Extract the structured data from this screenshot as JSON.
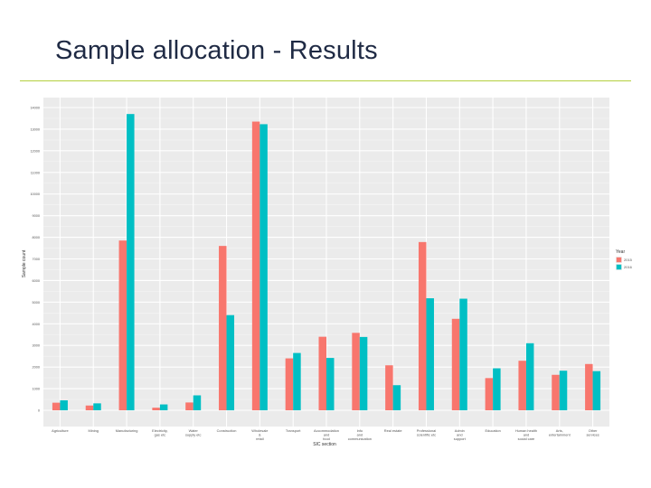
{
  "slide": {
    "title": "Sample allocation - Results"
  },
  "chart_data": {
    "type": "bar",
    "title": "",
    "xlabel": "SIC section",
    "ylabel": "Sample count",
    "ylim": [
      0,
      14000
    ],
    "yticks": [
      0,
      1000,
      2000,
      3000,
      4000,
      5000,
      6000,
      7000,
      8000,
      9000,
      10000,
      11000,
      12000,
      13000,
      14000
    ],
    "ytick_labels": [
      "0",
      "1000",
      "2000",
      "3000",
      "4000",
      "5000",
      "6000",
      "7000",
      "8000",
      "9000",
      "10000",
      "11000",
      "12000",
      "13000",
      "14000"
    ],
    "grid": true,
    "legend": {
      "title": "Year",
      "position": "right"
    },
    "categories": [
      [
        "Agriculture"
      ],
      [
        "Mining"
      ],
      [
        "Manufacturing"
      ],
      [
        "Electricity,",
        "gas etc"
      ],
      [
        "Water",
        "supply etc"
      ],
      [
        "Construction"
      ],
      [
        "Wholesale",
        "&",
        "retail"
      ],
      [
        "Transport"
      ],
      [
        "Accommodation",
        "and",
        "food"
      ],
      [
        "Info",
        "and",
        "communication"
      ],
      [
        "Real estate"
      ],
      [
        "Professional",
        "scientific etc"
      ],
      [
        "Admin",
        "and",
        "support"
      ],
      [
        "Education"
      ],
      [
        "Human health",
        "and",
        "social care"
      ],
      [
        "Arts,",
        "entertainment"
      ],
      [
        "Other",
        "services"
      ]
    ],
    "series": [
      {
        "name": "2015",
        "color": "#f8766d",
        "values": [
          350,
          220,
          7850,
          120,
          360,
          7600,
          13350,
          2400,
          3400,
          3580,
          2080,
          7780,
          4230,
          1490,
          2290,
          1640,
          2140
        ]
      },
      {
        "name": "2016",
        "color": "#00bfc4",
        "values": [
          460,
          320,
          13700,
          270,
          690,
          4400,
          13230,
          2650,
          2420,
          3390,
          1160,
          5180,
          5160,
          1940,
          3100,
          1830,
          1810
        ]
      }
    ]
  }
}
